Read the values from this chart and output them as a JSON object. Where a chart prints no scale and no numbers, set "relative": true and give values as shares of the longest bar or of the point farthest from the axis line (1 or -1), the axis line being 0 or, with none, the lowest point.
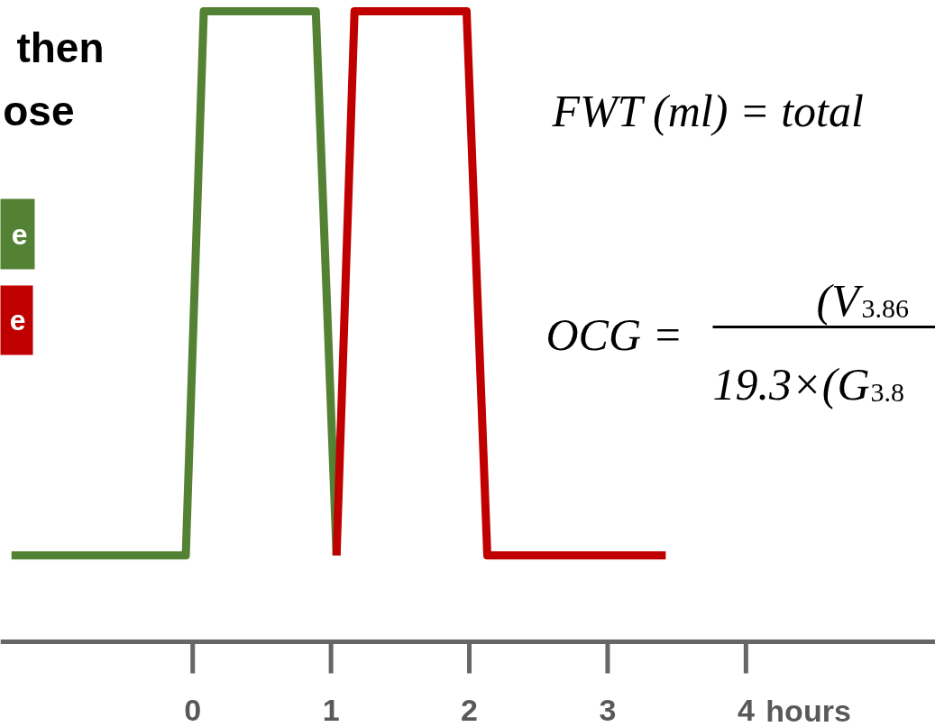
{
  "chart_data": {
    "type": "line",
    "relative": true,
    "xlim": [
      -1.39,
      5.37
    ],
    "xticks": [
      0,
      1,
      2,
      3,
      4
    ],
    "xlabel": "hours",
    "legend": "top left",
    "series": [
      {
        "name": "e",
        "color": "#548235",
        "x": [
          -1.31,
          -0.05,
          0.08,
          0.89,
          1.04
        ],
        "values": [
          0.137,
          0.137,
          1,
          1,
          0.137
        ]
      },
      {
        "name": "e",
        "color": "#c00000",
        "x": [
          1.04,
          1.17,
          1.98,
          2.13,
          3.42
        ],
        "values": [
          0.137,
          1,
          1,
          0.137,
          0.137
        ]
      }
    ],
    "annotations": [
      "then",
      "ose",
      "FWT (ml) = total",
      "OCG =",
      "(V$_{3.86}$",
      "19.3×(G$_{3.8}$"
    ]
  }
}
